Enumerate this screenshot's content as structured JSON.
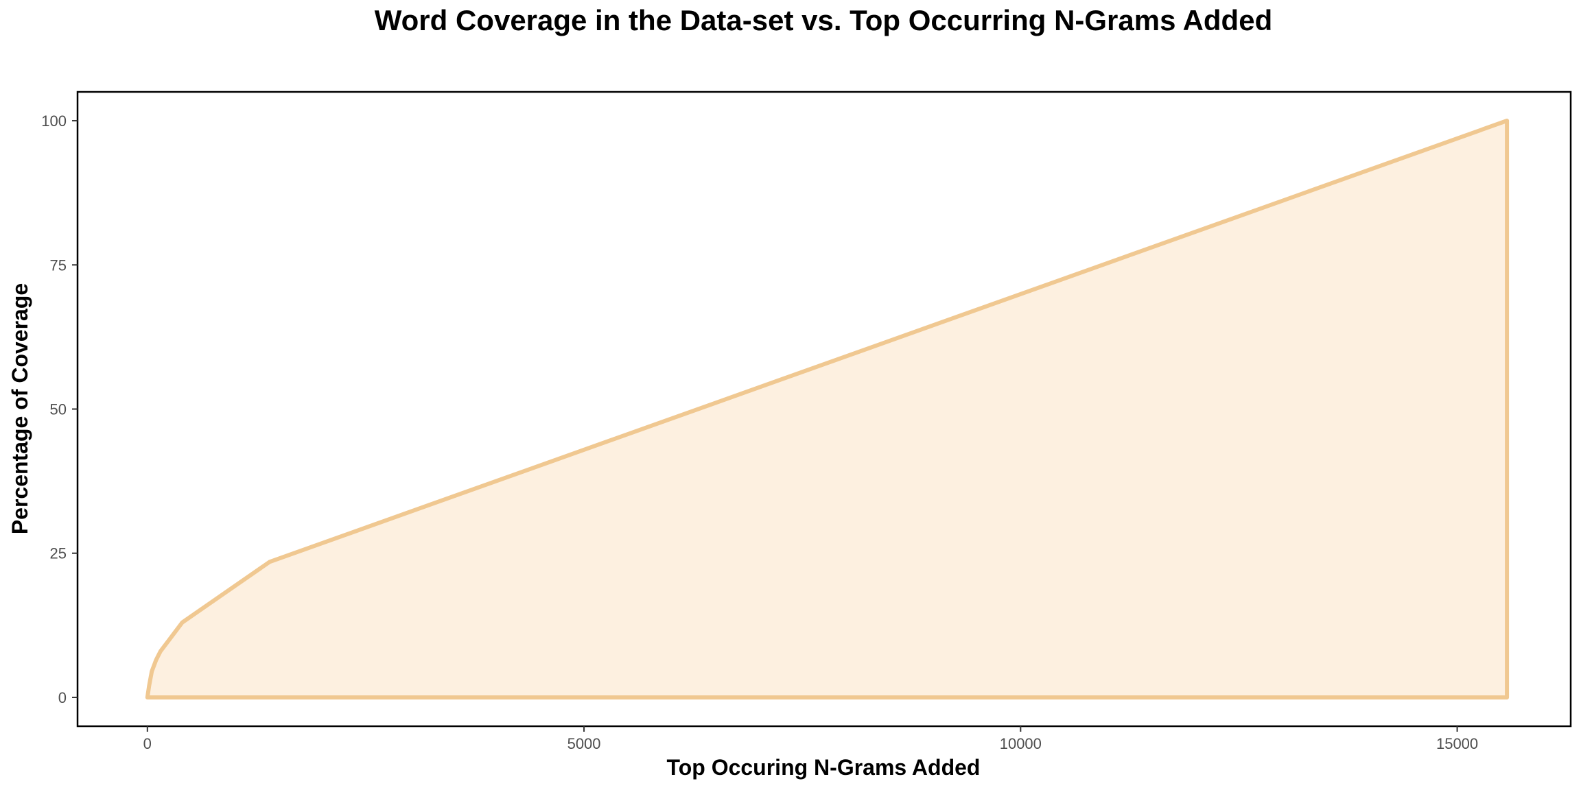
{
  "chart_data": {
    "type": "area",
    "title": "Word Coverage in the Data-set vs. Top Occurring N-Grams Added",
    "xlabel": "Top Occuring N-Grams Added",
    "ylabel": "Percentage of Coverage",
    "xlim": [
      -800,
      16300
    ],
    "ylim": [
      -5,
      105
    ],
    "x_ticks": [
      0,
      5000,
      10000,
      15000
    ],
    "x_tick_labels": [
      "0",
      "5000",
      "10000",
      "15000"
    ],
    "y_ticks": [
      0,
      25,
      50,
      75,
      100
    ],
    "y_tick_labels": [
      "0",
      "25",
      "50",
      "75",
      "100"
    ],
    "grid": false,
    "legend": "none",
    "colors": {
      "line": "#f0c891",
      "fill": "#fdf0e0"
    },
    "series": [
      {
        "x": [
          0,
          20,
          50,
          100,
          150,
          250,
          400,
          1400,
          15570,
          15570,
          0
        ],
        "y": [
          0,
          2,
          4.5,
          6.5,
          8,
          10,
          13,
          23.5,
          100,
          0,
          0
        ]
      }
    ]
  }
}
